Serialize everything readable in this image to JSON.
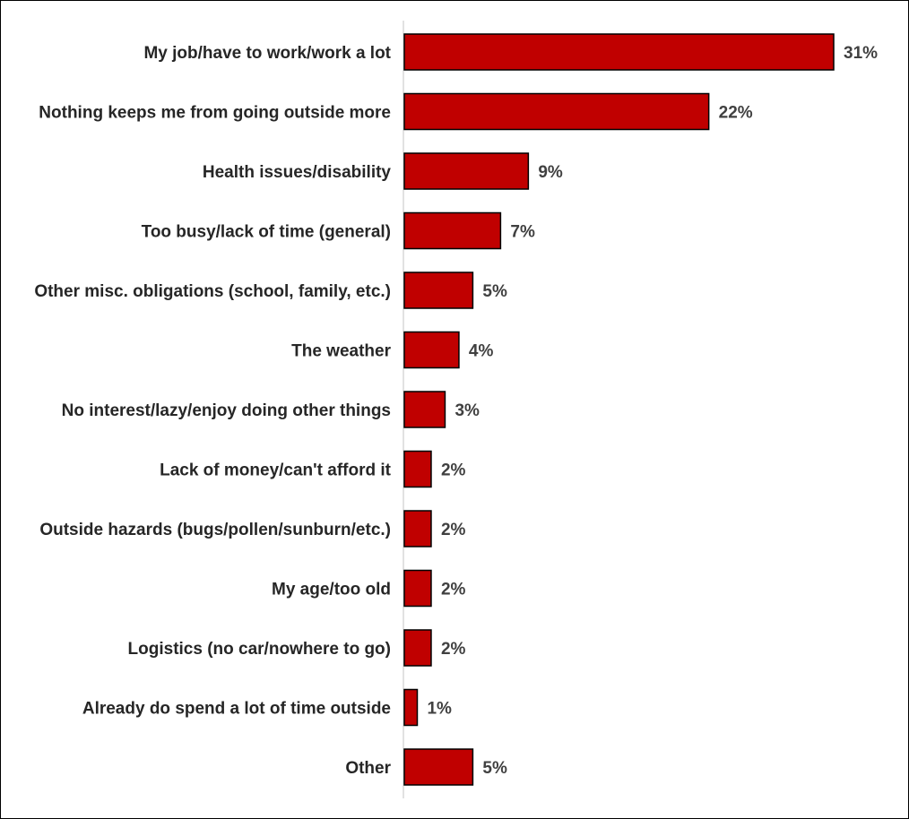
{
  "chart_data": {
    "type": "bar",
    "orientation": "horizontal",
    "categories": [
      "My job/have to work/work a lot",
      "Nothing keeps me from going outside more",
      "Health issues/disability",
      "Too busy/lack of time (general)",
      "Other misc. obligations (school, family, etc.)",
      "The weather",
      "No interest/lazy/enjoy doing other things",
      "Lack of money/can't afford it",
      "Outside hazards (bugs/pollen/sunburn/etc.)",
      "My age/too old",
      "Logistics (no car/nowhere to go)",
      "Already do spend a lot of time outside",
      "Other"
    ],
    "values": [
      31,
      22,
      9,
      7,
      5,
      4,
      3,
      2,
      2,
      2,
      2,
      1,
      5
    ],
    "value_labels": [
      "31%",
      "22%",
      "9%",
      "7%",
      "5%",
      "4%",
      "3%",
      "2%",
      "2%",
      "2%",
      "2%",
      "1%",
      "5%"
    ],
    "unit": "%",
    "xlim": [
      0,
      31
    ],
    "grid": false,
    "legend": "none",
    "bar_color": "#C00000",
    "bar_edge_color": "#000000",
    "axis_color": "#D9D9D9"
  }
}
